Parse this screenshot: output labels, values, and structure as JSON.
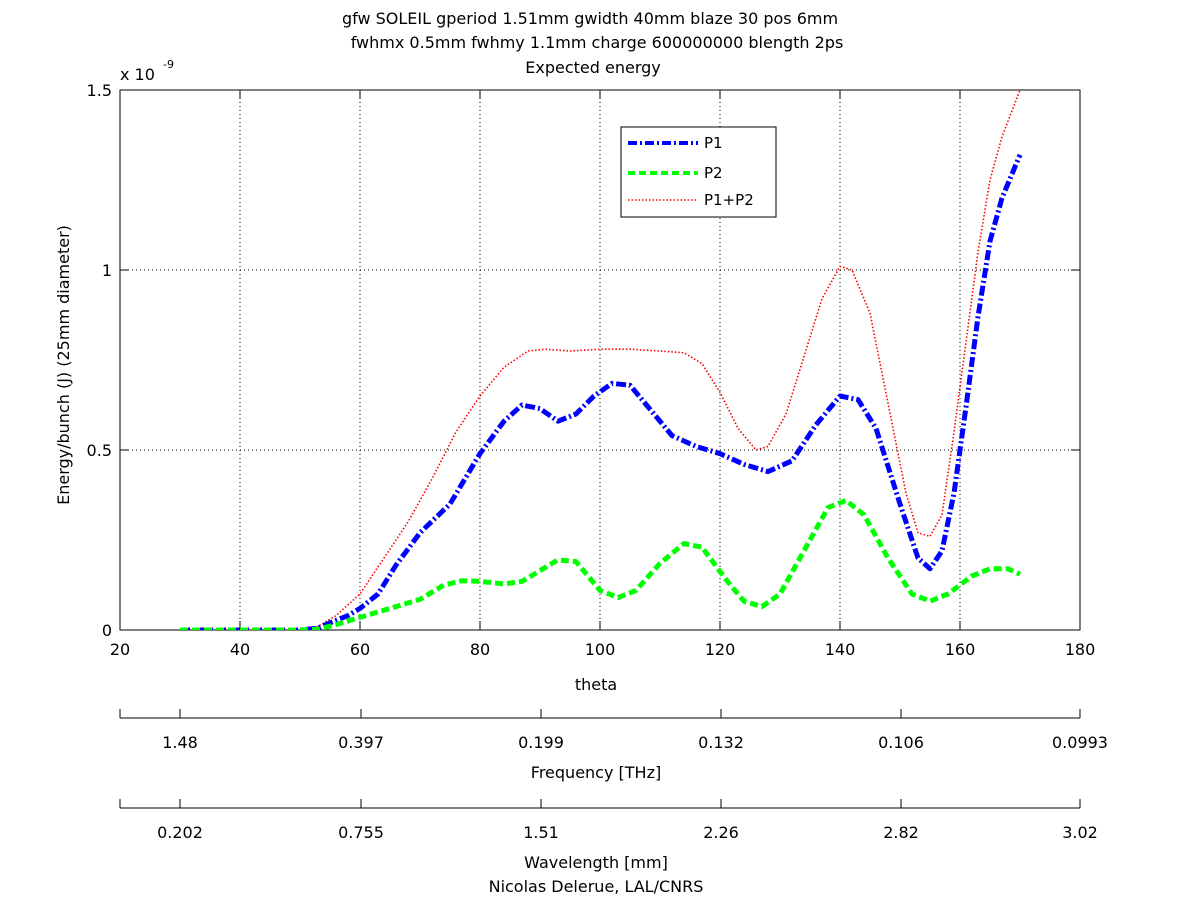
{
  "chart_data": {
    "type": "line",
    "title_lines": [
      "gfw SOLEIL gperiod 1.51mm gwidth 40mm blaze 30 pos 6mm",
      "fwhmx 0.5mm fwhmy 1.1mm charge 600000000 blength 2ps",
      "Expected energy"
    ],
    "xlabel": "theta",
    "ylabel": "Energy/bunch (J) (25mm diameter)",
    "y_multiplier_label": "x 10",
    "y_multiplier_exponent": "-9",
    "xlim": [
      20,
      180
    ],
    "ylim": [
      0,
      1.5
    ],
    "xticks": [
      20,
      40,
      60,
      80,
      100,
      120,
      140,
      160,
      180
    ],
    "yticks": [
      0,
      0.5,
      1,
      1.5
    ],
    "ytick_labels": [
      "0",
      "0.5",
      "1",
      "1.5"
    ],
    "grid": true,
    "legend_position": "top-center",
    "series": [
      {
        "name": "P1",
        "color": "#0000ff",
        "style": "dash-dot",
        "points": [
          [
            30,
            0
          ],
          [
            40,
            0
          ],
          [
            50,
            0
          ],
          [
            53,
            0.005
          ],
          [
            55,
            0.02
          ],
          [
            58,
            0.04
          ],
          [
            60,
            0.06
          ],
          [
            63,
            0.1
          ],
          [
            66,
            0.18
          ],
          [
            70,
            0.27
          ],
          [
            75,
            0.35
          ],
          [
            80,
            0.49
          ],
          [
            84,
            0.58
          ],
          [
            87,
            0.625
          ],
          [
            90,
            0.615
          ],
          [
            93,
            0.58
          ],
          [
            96,
            0.6
          ],
          [
            99,
            0.65
          ],
          [
            102,
            0.685
          ],
          [
            105,
            0.68
          ],
          [
            108,
            0.62
          ],
          [
            112,
            0.54
          ],
          [
            116,
            0.51
          ],
          [
            120,
            0.49
          ],
          [
            124,
            0.46
          ],
          [
            128,
            0.44
          ],
          [
            132,
            0.47
          ],
          [
            136,
            0.57
          ],
          [
            140,
            0.65
          ],
          [
            143,
            0.64
          ],
          [
            146,
            0.56
          ],
          [
            150,
            0.35
          ],
          [
            153,
            0.2
          ],
          [
            155,
            0.17
          ],
          [
            157,
            0.22
          ],
          [
            159,
            0.38
          ],
          [
            161,
            0.62
          ],
          [
            163,
            0.87
          ],
          [
            165,
            1.08
          ],
          [
            167,
            1.2
          ],
          [
            170,
            1.32
          ]
        ]
      },
      {
        "name": "P2",
        "color": "#00ff00",
        "style": "dashed",
        "points": [
          [
            30,
            0
          ],
          [
            40,
            0
          ],
          [
            50,
            0
          ],
          [
            53,
            0.002
          ],
          [
            56,
            0.015
          ],
          [
            60,
            0.035
          ],
          [
            65,
            0.06
          ],
          [
            70,
            0.085
          ],
          [
            74,
            0.125
          ],
          [
            77,
            0.137
          ],
          [
            80,
            0.135
          ],
          [
            84,
            0.128
          ],
          [
            87,
            0.135
          ],
          [
            90,
            0.165
          ],
          [
            93,
            0.195
          ],
          [
            96,
            0.19
          ],
          [
            100,
            0.11
          ],
          [
            103,
            0.09
          ],
          [
            106,
            0.11
          ],
          [
            110,
            0.185
          ],
          [
            114,
            0.24
          ],
          [
            117,
            0.23
          ],
          [
            121,
            0.14
          ],
          [
            124,
            0.08
          ],
          [
            127,
            0.065
          ],
          [
            130,
            0.1
          ],
          [
            134,
            0.22
          ],
          [
            138,
            0.34
          ],
          [
            141,
            0.36
          ],
          [
            144,
            0.32
          ],
          [
            148,
            0.2
          ],
          [
            152,
            0.1
          ],
          [
            155,
            0.08
          ],
          [
            158,
            0.1
          ],
          [
            162,
            0.15
          ],
          [
            165,
            0.17
          ],
          [
            168,
            0.17
          ],
          [
            170,
            0.155
          ]
        ]
      },
      {
        "name": "P1+P2",
        "color": "#ff0000",
        "style": "dotted",
        "points": [
          [
            30,
            0
          ],
          [
            40,
            0
          ],
          [
            50,
            0
          ],
          [
            53,
            0.01
          ],
          [
            56,
            0.04
          ],
          [
            60,
            0.1
          ],
          [
            64,
            0.2
          ],
          [
            68,
            0.3
          ],
          [
            72,
            0.42
          ],
          [
            76,
            0.55
          ],
          [
            80,
            0.65
          ],
          [
            84,
            0.73
          ],
          [
            88,
            0.775
          ],
          [
            91,
            0.78
          ],
          [
            95,
            0.775
          ],
          [
            100,
            0.78
          ],
          [
            105,
            0.78
          ],
          [
            110,
            0.775
          ],
          [
            114,
            0.77
          ],
          [
            117,
            0.74
          ],
          [
            120,
            0.66
          ],
          [
            123,
            0.56
          ],
          [
            126,
            0.5
          ],
          [
            128,
            0.51
          ],
          [
            131,
            0.6
          ],
          [
            134,
            0.76
          ],
          [
            137,
            0.92
          ],
          [
            140,
            1.01
          ],
          [
            142,
            1.0
          ],
          [
            145,
            0.88
          ],
          [
            148,
            0.63
          ],
          [
            151,
            0.38
          ],
          [
            153,
            0.27
          ],
          [
            155,
            0.26
          ],
          [
            157,
            0.32
          ],
          [
            159,
            0.55
          ],
          [
            161,
            0.8
          ],
          [
            163,
            1.05
          ],
          [
            165,
            1.25
          ],
          [
            167,
            1.37
          ],
          [
            170,
            1.5
          ]
        ]
      }
    ],
    "secondary_axes": [
      {
        "label": "Frequency [THz]",
        "tick_labels": [
          "1.48",
          "0.397",
          "0.199",
          "0.132",
          "0.106",
          "0.0993"
        ]
      },
      {
        "label": "Wavelength [mm]",
        "tick_labels": [
          "0.202",
          "0.755",
          "1.51",
          "2.26",
          "2.82",
          "3.02"
        ]
      }
    ],
    "credit": "Nicolas Delerue, LAL/CNRS"
  }
}
